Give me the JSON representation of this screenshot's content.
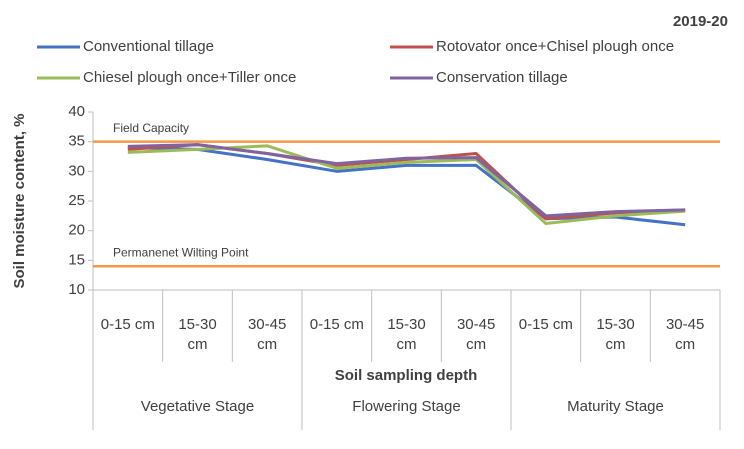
{
  "chart_data": {
    "type": "line",
    "title": "2019-20",
    "y_label": "Soil moisture content, %",
    "x_label": "Soil sampling depth",
    "categories": [
      "0-15 cm",
      "15-30 cm",
      "30-45 cm",
      "0-15 cm",
      "15-30 cm",
      "30-45 cm",
      "0-15 cm",
      "15-30 cm",
      "30-45 cm"
    ],
    "groups": [
      "Vegetative Stage",
      "Flowering Stage",
      "Maturity Stage"
    ],
    "series": [
      {
        "name": "Conventional tillage",
        "color": "#4472c4",
        "values": [
          34,
          33.7,
          32,
          30,
          31,
          31,
          22,
          22.3,
          21
        ]
      },
      {
        "name": "Rotovator once+Chisel plough once",
        "color": "#c0504d",
        "values": [
          33.7,
          34.5,
          33,
          31,
          32,
          33,
          22,
          23,
          23.5
        ]
      },
      {
        "name": "Chiesel plough once+Tiller once",
        "color": "#9bbb59",
        "values": [
          33.2,
          33.7,
          34.3,
          30.5,
          31.5,
          32,
          21.2,
          22.5,
          23.3
        ]
      },
      {
        "name": "Conservation tillage",
        "color": "#8064a2",
        "values": [
          34.2,
          34.5,
          33,
          31.3,
          32.2,
          32.3,
          22.5,
          23.2,
          23.5
        ]
      }
    ],
    "reference_lines": [
      {
        "label": "Field Capacity",
        "value": 35,
        "color": "#f79646"
      },
      {
        "label": "Permanenet Wilting Point",
        "value": 14,
        "color": "#f79646"
      }
    ],
    "ylim": [
      10,
      40
    ],
    "yticks": [
      10,
      15,
      20,
      25,
      30,
      35,
      40
    ]
  }
}
